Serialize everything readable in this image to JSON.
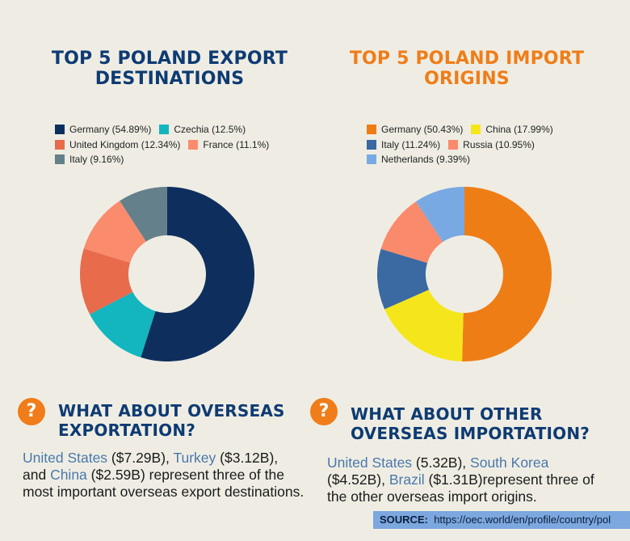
{
  "export": {
    "title_line1": "TOP 5 POLAND EXPORT",
    "title_line2": "DESTINATIONS",
    "question_icon": "question-mark-icon",
    "sub_line1": "WHAT ABOUT OVERSEAS",
    "sub_line2": "EXPORTATION?",
    "para": {
      "c1": "United States",
      "v1": " ($7.29B), ",
      "c2": "Turkey",
      "v2": " ($3.12B), and ",
      "c3": "China",
      "v3": " ($2.59B) represent three of the most important overseas export destinations."
    }
  },
  "import": {
    "title_line1": "TOP 5 POLAND IMPORT",
    "title_line2": "ORIGINS",
    "question_icon": "question-mark-icon",
    "sub_line1": "WHAT ABOUT OTHER",
    "sub_line2": "OVERSEAS IMPORTATION?",
    "para": {
      "c1": "United States",
      "v1": " (5.32B), ",
      "c2": "South Korea",
      "v2": " ($4.52B), ",
      "c3": "Brazil",
      "v3": " ($1.31B)represent three of the other overseas import origins."
    }
  },
  "source": {
    "label": "SOURCE:",
    "url": "https://oec.world/en/profile/country/pol"
  },
  "chart_data": [
    {
      "type": "pie",
      "donut": true,
      "title": "TOP 5 POLAND EXPORT DESTINATIONS",
      "legend_position": "top",
      "slices": [
        {
          "label": "Germany (54.89%)",
          "value": 54.89,
          "color": "#0e2f5e"
        },
        {
          "label": "Czechia (12.5%)",
          "value": 12.5,
          "color": "#13b5bf"
        },
        {
          "label": "United Kingdom (12.34%)",
          "value": 12.34,
          "color": "#e86b4c"
        },
        {
          "label": "France (11.1%)",
          "value": 11.1,
          "color": "#fb8b6d"
        },
        {
          "label": "Italy (9.16%)",
          "value": 9.16,
          "color": "#64808a"
        }
      ]
    },
    {
      "type": "pie",
      "donut": true,
      "title": "TOP 5 POLAND IMPORT ORIGINS",
      "legend_position": "top",
      "slices": [
        {
          "label": "Germany (50.43%)",
          "value": 50.43,
          "color": "#ef7d16"
        },
        {
          "label": "China (17.99%)",
          "value": 17.99,
          "color": "#f5e61b"
        },
        {
          "label": "Italy (11.24%)",
          "value": 11.24,
          "color": "#3a6aa1"
        },
        {
          "label": "Russia (10.95%)",
          "value": 10.95,
          "color": "#fa8a6c"
        },
        {
          "label": "Netherlands (9.39%)",
          "value": 9.39,
          "color": "#79a9e3"
        }
      ]
    }
  ]
}
